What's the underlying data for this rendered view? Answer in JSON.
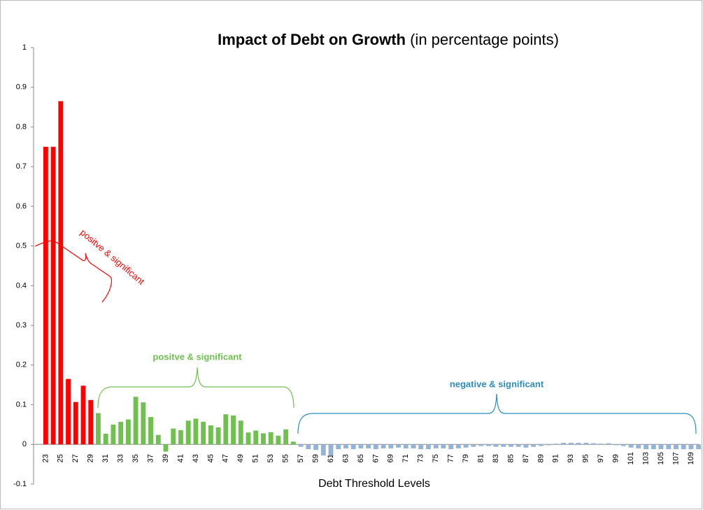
{
  "chart_data": {
    "type": "bar",
    "title": "Impact of Debt on Growth",
    "subtitle": "(in percentage points)",
    "x_label": "Debt Threshold Levels",
    "annotations": [
      "positve & significant",
      "positve  & significant",
      "negative & significant"
    ],
    "categories": [
      "23",
      null,
      "25",
      null,
      "27",
      null,
      "29",
      null,
      "31",
      null,
      "33",
      null,
      "35",
      null,
      "37",
      null,
      "39",
      null,
      "41",
      null,
      "43",
      null,
      "45",
      null,
      "47",
      null,
      "49",
      null,
      "51",
      null,
      "53",
      null,
      "55",
      null,
      "57",
      null,
      "59",
      null,
      "61",
      null,
      "63",
      null,
      "65",
      null,
      "67",
      null,
      "69",
      null,
      "71",
      null,
      "73",
      null,
      "75",
      null,
      "77",
      null,
      "79",
      null,
      "81",
      null,
      "83",
      null,
      "85",
      null,
      "87",
      null,
      "89",
      null,
      "91",
      null,
      "93",
      null,
      "95",
      null,
      "97",
      null,
      "99",
      null,
      "101",
      null,
      "103",
      null,
      "105",
      null,
      "107",
      null,
      "109",
      null
    ],
    "values": [
      0.75,
      0.75,
      0.865,
      0.165,
      0.107,
      0.148,
      0.112,
      0.079,
      0.027,
      0.05,
      0.057,
      0.063,
      0.12,
      0.106,
      0.069,
      0.024,
      -0.018,
      0.04,
      0.036,
      0.06,
      0.065,
      0.057,
      0.048,
      0.043,
      0.076,
      0.073,
      0.06,
      0.03,
      0.035,
      0.028,
      0.031,
      0.022,
      0.038,
      0.007,
      -0.006,
      -0.012,
      -0.014,
      -0.028,
      -0.028,
      -0.012,
      -0.01,
      -0.012,
      -0.01,
      -0.01,
      -0.012,
      -0.01,
      -0.01,
      -0.008,
      -0.01,
      -0.01,
      -0.012,
      -0.012,
      -0.01,
      -0.01,
      -0.012,
      -0.01,
      -0.008,
      -0.006,
      -0.004,
      -0.004,
      -0.006,
      -0.006,
      -0.006,
      -0.006,
      -0.008,
      -0.006,
      -0.004,
      -0.002,
      0.002,
      0.004,
      0.004,
      0.004,
      0.004,
      0.003,
      0.002,
      0.003,
      -0.002,
      -0.004,
      -0.008,
      -0.01,
      -0.012,
      -0.012,
      -0.012,
      -0.012,
      -0.012,
      -0.012,
      -0.012,
      -0.012
    ],
    "colors": [
      "#ff0000",
      "#ff0000",
      "#ff0000",
      "#ff0000",
      "#ff0000",
      "#ff0000",
      "#ff0000",
      "#70c050",
      "#70c050",
      "#70c050",
      "#70c050",
      "#70c050",
      "#70c050",
      "#70c050",
      "#70c050",
      "#70c050",
      "#70c050",
      "#70c050",
      "#70c050",
      "#70c050",
      "#70c050",
      "#70c050",
      "#70c050",
      "#70c050",
      "#70c050",
      "#70c050",
      "#70c050",
      "#70c050",
      "#70c050",
      "#70c050",
      "#70c050",
      "#70c050",
      "#70c050",
      "#70c050",
      "#95b3d7",
      "#95b3d7",
      "#95b3d7",
      "#95b3d7",
      "#95b3d7",
      "#95b3d7",
      "#95b3d7",
      "#95b3d7",
      "#95b3d7",
      "#95b3d7",
      "#95b3d7",
      "#95b3d7",
      "#95b3d7",
      "#95b3d7",
      "#95b3d7",
      "#95b3d7",
      "#95b3d7",
      "#95b3d7",
      "#95b3d7",
      "#95b3d7",
      "#95b3d7",
      "#95b3d7",
      "#95b3d7",
      "#95b3d7",
      "#95b3d7",
      "#95b3d7",
      "#95b3d7",
      "#95b3d7",
      "#95b3d7",
      "#95b3d7",
      "#95b3d7",
      "#95b3d7",
      "#95b3d7",
      "#95b3d7",
      "#95b3d7",
      "#95b3d7",
      "#95b3d7",
      "#95b3d7",
      "#95b3d7",
      "#95b3d7",
      "#95b3d7",
      "#95b3d7",
      "#95b3d7",
      "#95b3d7",
      "#95b3d7",
      "#95b3d7",
      "#95b3d7",
      "#95b3d7",
      "#95b3d7",
      "#95b3d7",
      "#95b3d7",
      "#95b3d7",
      "#95b3d7",
      "#95b3d7"
    ],
    "ylim": [
      -0.1,
      1
    ],
    "yticks": [
      -0.1,
      0,
      0.1,
      0.2,
      0.3,
      0.4,
      0.5,
      0.6,
      0.7,
      0.8,
      0.9,
      1
    ],
    "grid": false
  }
}
